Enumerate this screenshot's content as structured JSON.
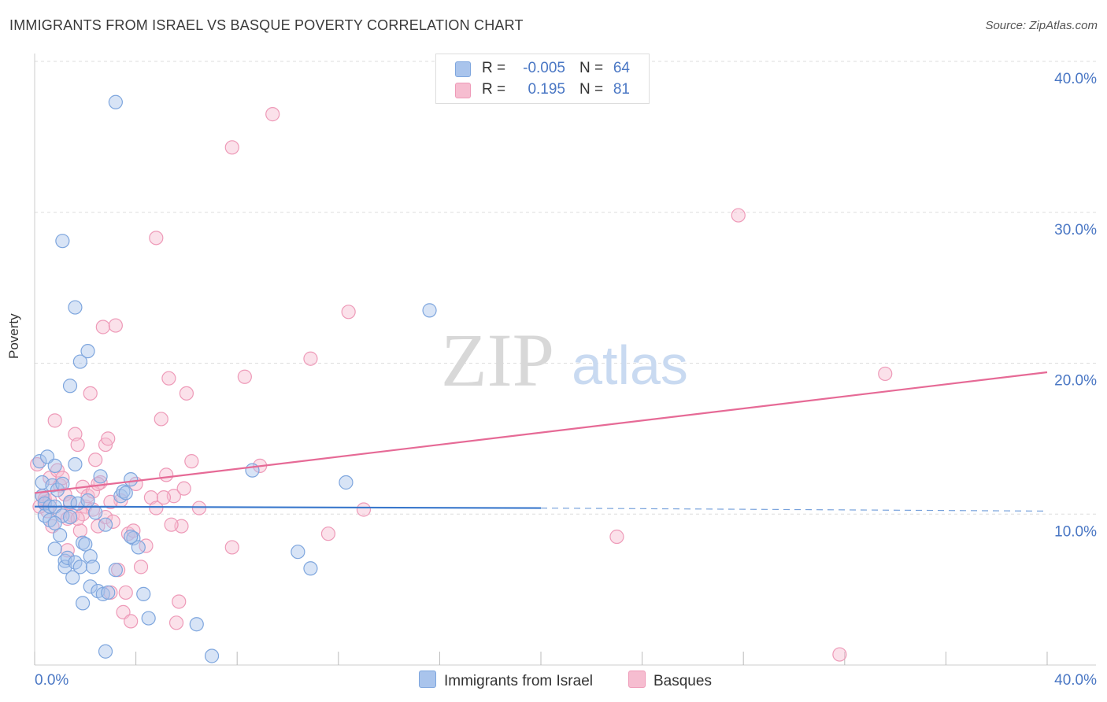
{
  "header": {
    "title": "IMMIGRANTS FROM ISRAEL VS BASQUE POVERTY CORRELATION CHART",
    "source": "Source: ZipAtlas.com"
  },
  "watermark": {
    "zip": "ZIP",
    "atlas": "atlas"
  },
  "legend": {
    "series": [
      {
        "name": "Immigrants from Israel",
        "r_label": "R =",
        "r_value": "-0.005",
        "n_label": "N =",
        "n_value": "64"
      },
      {
        "name": "Basques",
        "r_label": "R =",
        "r_value": "0.195",
        "n_label": "N =",
        "n_value": "81"
      }
    ]
  },
  "colors": {
    "blue_fill": "#a9c4ec",
    "blue_stroke": "#7ea6de",
    "blue_line": "#3a78cc",
    "pink_fill": "#f6bdd0",
    "pink_stroke": "#ee9ab8",
    "pink_line": "#e66a96",
    "grid": "#dddddd",
    "tick_label": "#4a77c4"
  },
  "chart_data": {
    "type": "scatter",
    "title": "IMMIGRANTS FROM ISRAEL VS BASQUE POVERTY CORRELATION CHART",
    "xlabel": "",
    "ylabel": "Poverty",
    "xlim": [
      0,
      40
    ],
    "ylim": [
      0,
      40
    ],
    "x_tick_labels": [
      "0.0%",
      "40.0%"
    ],
    "y_ticks": [
      10,
      20,
      30,
      40
    ],
    "y_tick_labels": [
      "10.0%",
      "20.0%",
      "30.0%",
      "40.0%"
    ],
    "grid": true,
    "series": [
      {
        "name": "Immigrants from Israel",
        "color": "#a9c4ec",
        "r": -0.005,
        "n": 64,
        "trend": {
          "x0": 0,
          "y0": 10.5,
          "x1": 20,
          "y1": 10.4,
          "dashed_to_x": 40,
          "dashed_to_y": 10.2
        },
        "points": [
          [
            0.2,
            13.5
          ],
          [
            0.3,
            12.1
          ],
          [
            0.3,
            11.2
          ],
          [
            0.4,
            10.7
          ],
          [
            0.4,
            9.9
          ],
          [
            0.5,
            13.8
          ],
          [
            0.6,
            10.5
          ],
          [
            0.6,
            9.6
          ],
          [
            0.7,
            11.9
          ],
          [
            0.8,
            13.2
          ],
          [
            0.8,
            7.7
          ],
          [
            0.8,
            10.5
          ],
          [
            0.9,
            11.6
          ],
          [
            1.0,
            8.6
          ],
          [
            1.1,
            9.9
          ],
          [
            1.1,
            12.0
          ],
          [
            1.2,
            6.9
          ],
          [
            1.2,
            6.5
          ],
          [
            1.3,
            7.1
          ],
          [
            1.4,
            9.8
          ],
          [
            1.4,
            10.8
          ],
          [
            1.5,
            5.8
          ],
          [
            1.6,
            6.8
          ],
          [
            1.7,
            10.7
          ],
          [
            1.8,
            6.5
          ],
          [
            1.9,
            4.1
          ],
          [
            1.9,
            8.1
          ],
          [
            2.0,
            8.0
          ],
          [
            2.1,
            10.9
          ],
          [
            2.2,
            7.2
          ],
          [
            2.2,
            5.2
          ],
          [
            2.3,
            6.5
          ],
          [
            2.4,
            10.1
          ],
          [
            2.5,
            4.9
          ],
          [
            2.6,
            12.5
          ],
          [
            2.7,
            4.7
          ],
          [
            2.8,
            9.3
          ],
          [
            2.9,
            4.8
          ],
          [
            3.2,
            6.3
          ],
          [
            3.4,
            11.2
          ],
          [
            3.5,
            11.5
          ],
          [
            3.8,
            12.3
          ],
          [
            3.9,
            8.4
          ],
          [
            4.1,
            7.8
          ],
          [
            4.3,
            4.7
          ],
          [
            4.5,
            3.1
          ],
          [
            1.1,
            28.1
          ],
          [
            1.6,
            23.7
          ],
          [
            1.8,
            20.1
          ],
          [
            1.4,
            18.5
          ],
          [
            2.1,
            20.8
          ],
          [
            3.2,
            37.3
          ],
          [
            3.6,
            11.4
          ],
          [
            6.4,
            2.7
          ],
          [
            7.0,
            0.6
          ],
          [
            8.6,
            12.9
          ],
          [
            10.4,
            7.5
          ],
          [
            10.9,
            6.4
          ],
          [
            12.3,
            12.1
          ],
          [
            15.6,
            23.5
          ],
          [
            0.8,
            9.4
          ],
          [
            1.6,
            13.3
          ],
          [
            2.8,
            0.9
          ],
          [
            3.8,
            8.5
          ]
        ]
      },
      {
        "name": "Basques",
        "color": "#f6bdd0",
        "r": 0.195,
        "n": 81,
        "trend": {
          "x0": 0,
          "y0": 11.4,
          "x1": 40,
          "y1": 19.4
        },
        "points": [
          [
            0.1,
            13.3
          ],
          [
            0.3,
            11.2
          ],
          [
            0.4,
            10.8
          ],
          [
            0.5,
            10.2
          ],
          [
            0.6,
            12.4
          ],
          [
            0.7,
            9.2
          ],
          [
            0.8,
            16.2
          ],
          [
            0.9,
            12.9
          ],
          [
            1.0,
            11.9
          ],
          [
            1.1,
            12.4
          ],
          [
            1.2,
            11.3
          ],
          [
            1.3,
            7.6
          ],
          [
            1.4,
            10.7
          ],
          [
            1.5,
            9.9
          ],
          [
            1.6,
            15.3
          ],
          [
            1.7,
            14.6
          ],
          [
            1.8,
            8.9
          ],
          [
            1.9,
            11.8
          ],
          [
            2.0,
            10.5
          ],
          [
            2.1,
            11.2
          ],
          [
            2.2,
            18.0
          ],
          [
            2.3,
            10.3
          ],
          [
            2.4,
            13.6
          ],
          [
            2.5,
            9.2
          ],
          [
            2.6,
            12.1
          ],
          [
            2.7,
            22.4
          ],
          [
            2.8,
            14.6
          ],
          [
            2.9,
            15.0
          ],
          [
            3.0,
            4.8
          ],
          [
            3.2,
            22.5
          ],
          [
            3.3,
            6.3
          ],
          [
            3.4,
            10.9
          ],
          [
            3.5,
            3.5
          ],
          [
            3.6,
            4.8
          ],
          [
            3.7,
            8.7
          ],
          [
            3.8,
            2.9
          ],
          [
            3.9,
            8.9
          ],
          [
            4.2,
            6.5
          ],
          [
            4.4,
            7.9
          ],
          [
            4.6,
            11.1
          ],
          [
            4.8,
            28.3
          ],
          [
            5.0,
            16.3
          ],
          [
            5.2,
            12.6
          ],
          [
            5.3,
            19.0
          ],
          [
            5.5,
            11.2
          ],
          [
            5.6,
            2.8
          ],
          [
            5.7,
            4.2
          ],
          [
            5.8,
            9.2
          ],
          [
            5.9,
            11.7
          ],
          [
            6.0,
            18.0
          ],
          [
            6.2,
            13.5
          ],
          [
            6.5,
            10.4
          ],
          [
            7.8,
            34.3
          ],
          [
            7.8,
            7.8
          ],
          [
            8.3,
            19.1
          ],
          [
            8.9,
            13.2
          ],
          [
            9.4,
            36.5
          ],
          [
            10.9,
            20.3
          ],
          [
            11.6,
            8.7
          ],
          [
            12.4,
            23.4
          ],
          [
            13.0,
            10.3
          ],
          [
            23.0,
            8.5
          ],
          [
            27.8,
            29.8
          ],
          [
            31.8,
            0.7
          ],
          [
            33.6,
            19.3
          ],
          [
            0.2,
            10.5
          ],
          [
            0.4,
            11.0
          ],
          [
            1.0,
            10.1
          ],
          [
            1.3,
            9.7
          ],
          [
            1.9,
            10.0
          ],
          [
            2.3,
            11.5
          ],
          [
            2.5,
            12.0
          ],
          [
            2.8,
            9.8
          ],
          [
            3.0,
            10.8
          ],
          [
            3.1,
            9.5
          ],
          [
            4.0,
            12.0
          ],
          [
            4.8,
            10.4
          ],
          [
            5.1,
            11.1
          ],
          [
            0.6,
            10.9
          ],
          [
            1.7,
            9.7
          ],
          [
            5.4,
            9.3
          ]
        ]
      }
    ]
  }
}
